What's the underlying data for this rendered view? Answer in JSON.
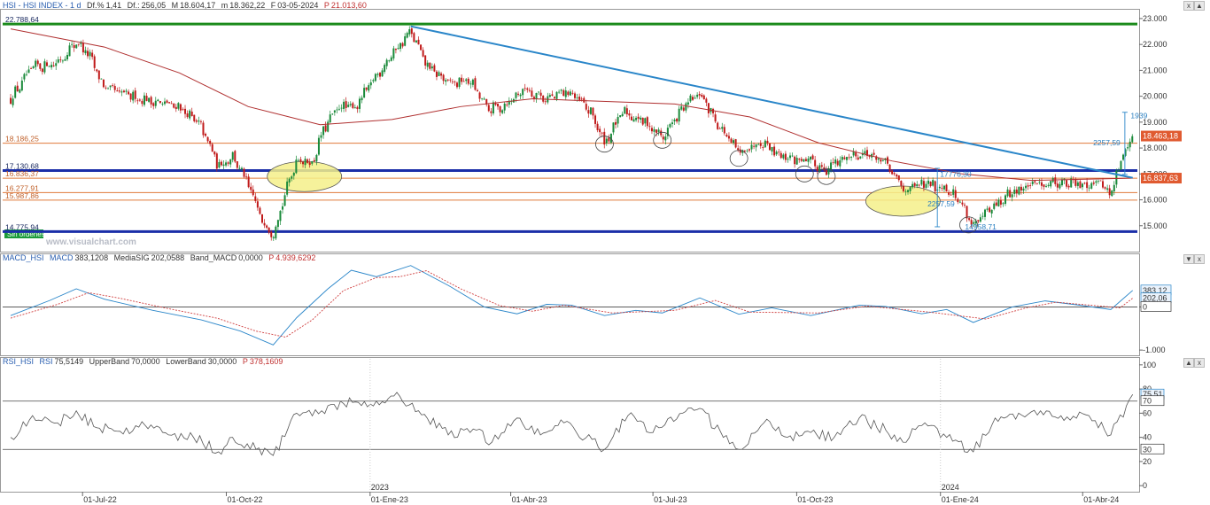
{
  "header": {
    "main": {
      "series": "HSI - HSI INDEX - 1 d",
      "df_label": "Df.%",
      "df": "1,41",
      "df2_label": "Df.:",
      "df2": "256,05",
      "m_label": "M",
      "m": "18.604,17",
      "mn_label": "m",
      "mn": "18.362,22",
      "f_label": "F",
      "f": "03-05-2024",
      "p_label": "P",
      "p": "21.013,60"
    },
    "macd": {
      "name": "MACD_HSI",
      "macd_label": "MACD",
      "macd": "383,1208",
      "sig_label": "MediaSIG",
      "sig": "202,0588",
      "band_label": "Band_MACD",
      "band": "0,0000",
      "p_label": "P",
      "p": "4.939,6292"
    },
    "rsi": {
      "name": "RSI_HSI",
      "rsi_label": "RSI",
      "rsi": "75,5149",
      "ub_label": "UpperBand",
      "ub": "70,0000",
      "lb_label": "LowerBand",
      "lb": "30,0000",
      "p_label": "P",
      "p": "378,1609"
    }
  },
  "watermark": "www.visualchart.com",
  "no_orders_label": "Sin órdenes",
  "controls": {
    "close": "x",
    "up": "▲",
    "down": "▼"
  },
  "colors": {
    "candle_up": "#1a8a3a",
    "candle_down": "#c01a1a",
    "ma": "#b03030",
    "trendline": "#2a86c9",
    "support": "#1a2ea8",
    "resistance": "#1a8a1a",
    "orange_level": "#e07a3a",
    "macd": "#2a86c9",
    "signal": "#d04040",
    "rsi": "#555555",
    "ellipse_fill": "#f5f08a"
  },
  "chart_data": [
    {
      "type": "candlestick",
      "x_ticks": [
        "01-Jul-22",
        "01-Oct-22",
        "01-Ene-23",
        "01-Abr-23",
        "01-Jul-23",
        "01-Oct-23",
        "01-Ene-24",
        "01-Abr-24"
      ],
      "year_labels": [
        "2023",
        "2024"
      ],
      "y_ticks": [
        "15.000",
        "16.000",
        "17.000",
        "18.000",
        "19.000",
        "20.000",
        "21.000",
        "22.000",
        "23.000"
      ],
      "ylim": [
        14000,
        23100
      ],
      "close_path": [
        [
          "2022-05-16",
          19900
        ],
        [
          "2022-05-30",
          21100
        ],
        [
          "2022-06-15",
          21300
        ],
        [
          "2022-06-27",
          22100
        ],
        [
          "2022-07-05",
          21600
        ],
        [
          "2022-07-15",
          20300
        ],
        [
          "2022-08-01",
          20000
        ],
        [
          "2022-08-15",
          19800
        ],
        [
          "2022-09-01",
          19600
        ],
        [
          "2022-09-15",
          18800
        ],
        [
          "2022-09-26",
          17300
        ],
        [
          "2022-10-05",
          17700
        ],
        [
          "2022-10-14",
          16700
        ],
        [
          "2022-10-24",
          15200
        ],
        [
          "2022-10-31",
          14700
        ],
        [
          "2022-11-07",
          16100
        ],
        [
          "2022-11-15",
          17600
        ],
        [
          "2022-11-25",
          17400
        ],
        [
          "2022-12-02",
          18700
        ],
        [
          "2022-12-12",
          19600
        ],
        [
          "2022-12-23",
          19600
        ],
        [
          "2023-01-05",
          20800
        ],
        [
          "2023-01-16",
          21700
        ],
        [
          "2023-01-27",
          22500
        ],
        [
          "2023-02-06",
          21200
        ],
        [
          "2023-02-20",
          20500
        ],
        [
          "2023-03-06",
          20600
        ],
        [
          "2023-03-17",
          19500
        ],
        [
          "2023-03-27",
          19600
        ],
        [
          "2023-04-10",
          20300
        ],
        [
          "2023-04-24",
          19900
        ],
        [
          "2023-05-08",
          20200
        ],
        [
          "2023-05-22",
          19400
        ],
        [
          "2023-05-31",
          18200
        ],
        [
          "2023-06-12",
          19400
        ],
        [
          "2023-06-26",
          19000
        ],
        [
          "2023-07-07",
          18400
        ],
        [
          "2023-07-21",
          19600
        ],
        [
          "2023-07-31",
          20100
        ],
        [
          "2023-08-14",
          18700
        ],
        [
          "2023-08-25",
          17800
        ],
        [
          "2023-09-08",
          18300
        ],
        [
          "2023-09-22",
          17700
        ],
        [
          "2023-10-06",
          17500
        ],
        [
          "2023-10-20",
          17200
        ],
        [
          "2023-11-03",
          17700
        ],
        [
          "2023-11-15",
          17800
        ],
        [
          "2023-11-27",
          17400
        ],
        [
          "2023-12-08",
          16400
        ],
        [
          "2023-12-22",
          16600
        ],
        [
          "2024-01-05",
          16500
        ],
        [
          "2024-01-15",
          15800
        ],
        [
          "2024-01-22",
          15000
        ],
        [
          "2024-02-02",
          15600
        ],
        [
          "2024-02-16",
          16300
        ],
        [
          "2024-03-01",
          16600
        ],
        [
          "2024-03-15",
          16700
        ],
        [
          "2024-03-28",
          16600
        ],
        [
          "2024-04-12",
          16700
        ],
        [
          "2024-04-19",
          16200
        ],
        [
          "2024-04-26",
          17600
        ],
        [
          "2024-05-03",
          18478
        ]
      ],
      "moving_average": [
        [
          "2022-05-16",
          22600
        ],
        [
          "2022-07-15",
          21900
        ],
        [
          "2022-09-01",
          20900
        ],
        [
          "2022-10-15",
          19600
        ],
        [
          "2022-11-30",
          18900
        ],
        [
          "2023-01-15",
          19100
        ],
        [
          "2023-02-28",
          19600
        ],
        [
          "2023-04-15",
          19900
        ],
        [
          "2023-06-01",
          19800
        ],
        [
          "2023-07-15",
          19700
        ],
        [
          "2023-09-01",
          19200
        ],
        [
          "2023-10-15",
          18200
        ],
        [
          "2023-12-01",
          17500
        ],
        [
          "2024-01-15",
          17000
        ],
        [
          "2024-02-28",
          16750
        ],
        [
          "2024-05-03",
          16838
        ]
      ],
      "levels": [
        {
          "label": "22.788,64",
          "value": 22788.64,
          "color": "#1a8a1a",
          "width": 3
        },
        {
          "label": "18.186,25",
          "value": 18186.25,
          "color": "#e07a3a",
          "width": 1
        },
        {
          "label": "17.130,68",
          "value": 17130.68,
          "color": "#1a2ea8",
          "width": 3
        },
        {
          "label": "16.836,37",
          "value": 16836.37,
          "color": "#e07a3a",
          "width": 1
        },
        {
          "label": "16.277,91",
          "value": 16277.91,
          "color": "#e07a3a",
          "width": 1
        },
        {
          "label": "15.987,86",
          "value": 15987.86,
          "color": "#e07a3a",
          "width": 1
        },
        {
          "label": "14.775,94",
          "value": 14775.94,
          "color": "#1a2ea8",
          "width": 3
        }
      ],
      "trendline": {
        "from": [
          "2023-01-27",
          22700
        ],
        "to": [
          "2024-05-03",
          16850
        ]
      },
      "price_tags": [
        {
          "label": "18.463,18",
          "value": 18463.18,
          "color": "#e05a30"
        },
        {
          "label": "16.837,63",
          "value": 16837.63,
          "color": "#e05a30"
        }
      ],
      "annotations": [
        {
          "label": "17776,30",
          "at": [
            "2023-12-30",
            17000
          ]
        },
        {
          "label": "2257,59",
          "at": [
            "2023-12-22",
            15850
          ]
        },
        {
          "label": "14958,71",
          "at": [
            "2024-01-15",
            14958.71
          ]
        },
        {
          "label": "2257,59",
          "at": [
            "2024-04-06",
            18200
          ]
        },
        {
          "label": "1939",
          "at": [
            "2024-04-30",
            19250
          ]
        }
      ],
      "vertical_measures": [
        {
          "date": "2023-12-30",
          "from": 14958.71,
          "to": 17216.3
        },
        {
          "date": "2024-04-28",
          "from": 16980,
          "to": 19380
        }
      ],
      "ellipses": [
        {
          "date": "2022-11-20",
          "value": 16900,
          "filled": true
        },
        {
          "date": "2023-12-08",
          "value": 15950,
          "filled": true
        },
        {
          "date": "2023-05-31",
          "value": 18150,
          "filled": false
        },
        {
          "date": "2023-07-07",
          "value": 18300,
          "filled": false
        },
        {
          "date": "2023-08-25",
          "value": 17600,
          "filled": false
        },
        {
          "date": "2023-10-06",
          "value": 17000,
          "filled": false
        },
        {
          "date": "2023-10-20",
          "value": 16900,
          "filled": false
        },
        {
          "date": "2024-01-19",
          "value": 15030,
          "filled": false
        }
      ]
    },
    {
      "type": "line",
      "name": "MACD_HSI",
      "y_ticks": [
        "-1.000",
        "0"
      ],
      "ylim": [
        -1100,
        1200
      ],
      "zero_line": 0,
      "current_tags": [
        {
          "label": "383,12",
          "value": 383.12,
          "color": "#2a86c9"
        },
        {
          "label": "202,06",
          "value": 202.06,
          "color": "#2a86c9"
        },
        {
          "label": "0",
          "value": 0,
          "color": "#333333"
        }
      ],
      "series": [
        {
          "name": "MACD",
          "points": [
            [
              "2022-05-16",
              -200
            ],
            [
              "2022-06-10",
              150
            ],
            [
              "2022-06-27",
              420
            ],
            [
              "2022-07-15",
              180
            ],
            [
              "2022-08-15",
              -80
            ],
            [
              "2022-09-15",
              -300
            ],
            [
              "2022-10-10",
              -560
            ],
            [
              "2022-10-31",
              -880
            ],
            [
              "2022-11-15",
              -250
            ],
            [
              "2022-12-05",
              420
            ],
            [
              "2022-12-20",
              850
            ],
            [
              "2023-01-05",
              700
            ],
            [
              "2023-01-27",
              960
            ],
            [
              "2023-02-20",
              500
            ],
            [
              "2023-03-15",
              0
            ],
            [
              "2023-04-05",
              -160
            ],
            [
              "2023-04-24",
              60
            ],
            [
              "2023-05-10",
              40
            ],
            [
              "2023-05-31",
              -200
            ],
            [
              "2023-06-20",
              -80
            ],
            [
              "2023-07-07",
              -140
            ],
            [
              "2023-07-31",
              210
            ],
            [
              "2023-08-25",
              -170
            ],
            [
              "2023-09-15",
              -20
            ],
            [
              "2023-10-10",
              -200
            ],
            [
              "2023-11-10",
              40
            ],
            [
              "2023-11-27",
              10
            ],
            [
              "2023-12-20",
              -160
            ],
            [
              "2024-01-05",
              -60
            ],
            [
              "2024-01-22",
              -360
            ],
            [
              "2024-02-16",
              0
            ],
            [
              "2024-03-08",
              140
            ],
            [
              "2024-03-28",
              50
            ],
            [
              "2024-04-19",
              -60
            ],
            [
              "2024-05-03",
              383
            ]
          ]
        },
        {
          "name": "MediaSIG",
          "points": [
            [
              "2022-05-16",
              -260
            ],
            [
              "2022-06-15",
              60
            ],
            [
              "2022-07-05",
              330
            ],
            [
              "2022-07-25",
              200
            ],
            [
              "2022-08-25",
              -40
            ],
            [
              "2022-09-25",
              -260
            ],
            [
              "2022-10-20",
              -560
            ],
            [
              "2022-11-08",
              -700
            ],
            [
              "2022-11-25",
              -300
            ],
            [
              "2022-12-15",
              380
            ],
            [
              "2023-01-05",
              680
            ],
            [
              "2023-01-20",
              700
            ],
            [
              "2023-02-06",
              840
            ],
            [
              "2023-02-28",
              420
            ],
            [
              "2023-03-25",
              30
            ],
            [
              "2023-04-15",
              -100
            ],
            [
              "2023-05-05",
              40
            ],
            [
              "2023-06-05",
              -140
            ],
            [
              "2023-07-15",
              -80
            ],
            [
              "2023-08-10",
              150
            ],
            [
              "2023-09-01",
              -120
            ],
            [
              "2023-10-15",
              -140
            ],
            [
              "2023-11-15",
              20
            ],
            [
              "2023-12-25",
              -120
            ],
            [
              "2024-01-30",
              -280
            ],
            [
              "2024-02-25",
              -20
            ],
            [
              "2024-03-15",
              110
            ],
            [
              "2024-04-25",
              -20
            ],
            [
              "2024-05-03",
              202
            ]
          ]
        }
      ]
    },
    {
      "type": "line",
      "name": "RSI_HSI",
      "y_ticks": [
        "0",
        "20",
        "40",
        "60",
        "80",
        "100"
      ],
      "ylim": [
        -5,
        105
      ],
      "upper_band": 70,
      "lower_band": 30,
      "current_tags": [
        {
          "label": "75,51",
          "value": 75.51,
          "color": "#2a86c9"
        },
        {
          "label": "70",
          "value": 70,
          "color": "#333333"
        },
        {
          "label": "30",
          "value": 30,
          "color": "#333333"
        }
      ],
      "series": [
        {
          "name": "RSI",
          "points": [
            [
              "2022-05-16",
              40
            ],
            [
              "2022-05-30",
              58
            ],
            [
              "2022-06-15",
              52
            ],
            [
              "2022-06-27",
              62
            ],
            [
              "2022-07-10",
              48
            ],
            [
              "2022-07-25",
              45
            ],
            [
              "2022-08-10",
              50
            ],
            [
              "2022-08-25",
              42
            ],
            [
              "2022-09-10",
              40
            ],
            [
              "2022-09-26",
              28
            ],
            [
              "2022-10-05",
              40
            ],
            [
              "2022-10-20",
              30
            ],
            [
              "2022-10-31",
              25
            ],
            [
              "2022-11-15",
              60
            ],
            [
              "2022-12-01",
              62
            ],
            [
              "2022-12-15",
              68
            ],
            [
              "2023-01-05",
              70
            ],
            [
              "2023-01-20",
              74
            ],
            [
              "2023-02-01",
              62
            ],
            [
              "2023-02-20",
              42
            ],
            [
              "2023-03-10",
              46
            ],
            [
              "2023-03-20",
              36
            ],
            [
              "2023-04-05",
              56
            ],
            [
              "2023-04-20",
              42
            ],
            [
              "2023-05-05",
              52
            ],
            [
              "2023-05-31",
              30
            ],
            [
              "2023-06-15",
              58
            ],
            [
              "2023-07-01",
              44
            ],
            [
              "2023-07-20",
              60
            ],
            [
              "2023-07-31",
              64
            ],
            [
              "2023-08-15",
              40
            ],
            [
              "2023-08-25",
              30
            ],
            [
              "2023-09-10",
              52
            ],
            [
              "2023-09-25",
              40
            ],
            [
              "2023-10-10",
              44
            ],
            [
              "2023-10-25",
              40
            ],
            [
              "2023-11-10",
              56
            ],
            [
              "2023-11-27",
              46
            ],
            [
              "2023-12-08",
              36
            ],
            [
              "2023-12-22",
              52
            ],
            [
              "2024-01-05",
              40
            ],
            [
              "2024-01-22",
              28
            ],
            [
              "2024-02-05",
              56
            ],
            [
              "2024-02-20",
              60
            ],
            [
              "2024-03-05",
              62
            ],
            [
              "2024-03-20",
              54
            ],
            [
              "2024-04-05",
              58
            ],
            [
              "2024-04-19",
              42
            ],
            [
              "2024-05-03",
              75.5
            ]
          ]
        }
      ]
    }
  ]
}
